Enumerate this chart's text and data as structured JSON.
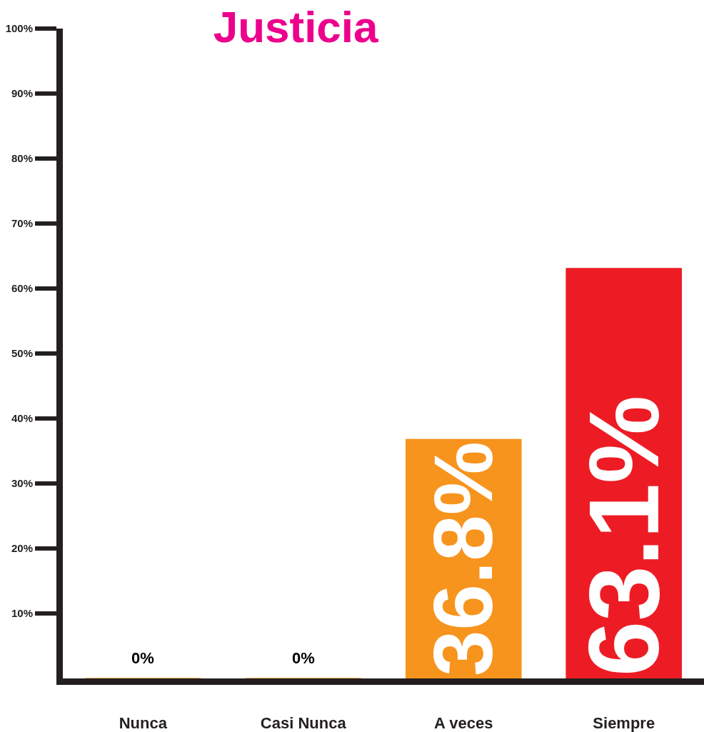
{
  "chart_data": {
    "type": "bar",
    "title": "Justicia",
    "categories": [
      "Nunca",
      "Casi Nunca",
      "A veces",
      "Siempre"
    ],
    "values": [
      0,
      0,
      36.8,
      63.1
    ],
    "value_labels": [
      "0%",
      "0%",
      "36.8%",
      "63.1%"
    ],
    "colors": [
      "#f7941d",
      "#f7941d",
      "#f7941d",
      "#ed1c24"
    ],
    "ylim": [
      0,
      100
    ],
    "yticks": [
      {
        "value": 10,
        "label": "10%"
      },
      {
        "value": 20,
        "label": "20%"
      },
      {
        "value": 30,
        "label": "30%"
      },
      {
        "value": 40,
        "label": "40%"
      },
      {
        "value": 50,
        "label": "50%"
      },
      {
        "value": 60,
        "label": "60%"
      },
      {
        "value": 70,
        "label": "70%"
      },
      {
        "value": 80,
        "label": "80%"
      },
      {
        "value": 90,
        "label": "90%"
      },
      {
        "value": 100,
        "label": "100%"
      }
    ],
    "ylabel": null
  }
}
